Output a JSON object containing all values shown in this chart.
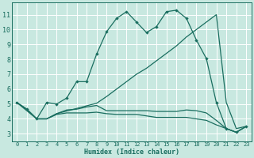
{
  "xlabel": "Humidex (Indice chaleur)",
  "bg_color": "#c8e8e0",
  "grid_color": "#ffffff",
  "line_color": "#1a6e60",
  "xlim": [
    -0.5,
    23.5
  ],
  "ylim": [
    2.5,
    11.8
  ],
  "xticks": [
    0,
    1,
    2,
    3,
    4,
    5,
    6,
    7,
    8,
    9,
    10,
    11,
    12,
    13,
    14,
    15,
    16,
    17,
    18,
    19,
    20,
    21,
    22,
    23
  ],
  "yticks": [
    3,
    4,
    5,
    6,
    7,
    8,
    9,
    10,
    11
  ],
  "line1_x": [
    0,
    1,
    2,
    3,
    4,
    5,
    6,
    7,
    8,
    9,
    10,
    11,
    12,
    13,
    14,
    15,
    16,
    17,
    18,
    19,
    20,
    21,
    22,
    23
  ],
  "line1_y": [
    5.1,
    4.65,
    4.0,
    5.1,
    5.0,
    5.4,
    6.5,
    6.5,
    8.35,
    9.85,
    10.75,
    11.2,
    10.5,
    9.8,
    10.2,
    11.2,
    11.3,
    10.75,
    9.3,
    8.05,
    5.1,
    3.35,
    3.1,
    3.5
  ],
  "line1_markers_x": [
    0,
    1,
    2,
    3,
    4,
    5,
    6,
    7,
    8,
    9,
    10,
    11,
    12,
    13,
    14,
    15,
    16,
    17,
    18,
    19,
    20,
    21,
    22,
    23
  ],
  "line1_markers_y": [
    5.1,
    4.65,
    4.0,
    5.1,
    5.0,
    5.4,
    6.5,
    6.5,
    8.35,
    9.85,
    10.75,
    11.2,
    10.5,
    9.8,
    10.2,
    11.2,
    11.3,
    10.75,
    9.3,
    8.05,
    5.1,
    3.35,
    3.1,
    3.5
  ],
  "line2_x": [
    0,
    2,
    3,
    4,
    8,
    9,
    10,
    11,
    12,
    13,
    14,
    15,
    16,
    17,
    18,
    19,
    20,
    21,
    22,
    23
  ],
  "line2_y": [
    5.1,
    4.0,
    4.0,
    4.35,
    5.05,
    5.5,
    6.0,
    6.5,
    7.0,
    7.4,
    7.9,
    8.4,
    8.9,
    9.5,
    10.0,
    10.5,
    11.0,
    5.1,
    3.35,
    3.5
  ],
  "line3_x": [
    0,
    1,
    2,
    3,
    4,
    5,
    6,
    7,
    8,
    9,
    10,
    11,
    12,
    13,
    14,
    15,
    16,
    17,
    18,
    19,
    20,
    21,
    22,
    23
  ],
  "line3_y": [
    5.1,
    4.65,
    4.0,
    4.0,
    4.35,
    4.6,
    4.65,
    4.8,
    4.9,
    4.55,
    4.55,
    4.55,
    4.55,
    4.55,
    4.5,
    4.5,
    4.5,
    4.6,
    4.55,
    4.4,
    3.9,
    3.35,
    3.1,
    3.5
  ],
  "line4_x": [
    0,
    1,
    2,
    3,
    4,
    5,
    6,
    7,
    8,
    9,
    10,
    11,
    12,
    13,
    14,
    15,
    16,
    17,
    18,
    19,
    20,
    21,
    22,
    23
  ],
  "line4_y": [
    5.1,
    4.65,
    4.0,
    4.0,
    4.3,
    4.4,
    4.4,
    4.4,
    4.45,
    4.35,
    4.3,
    4.3,
    4.3,
    4.2,
    4.1,
    4.1,
    4.1,
    4.1,
    4.0,
    3.9,
    3.6,
    3.35,
    3.1,
    3.5
  ]
}
